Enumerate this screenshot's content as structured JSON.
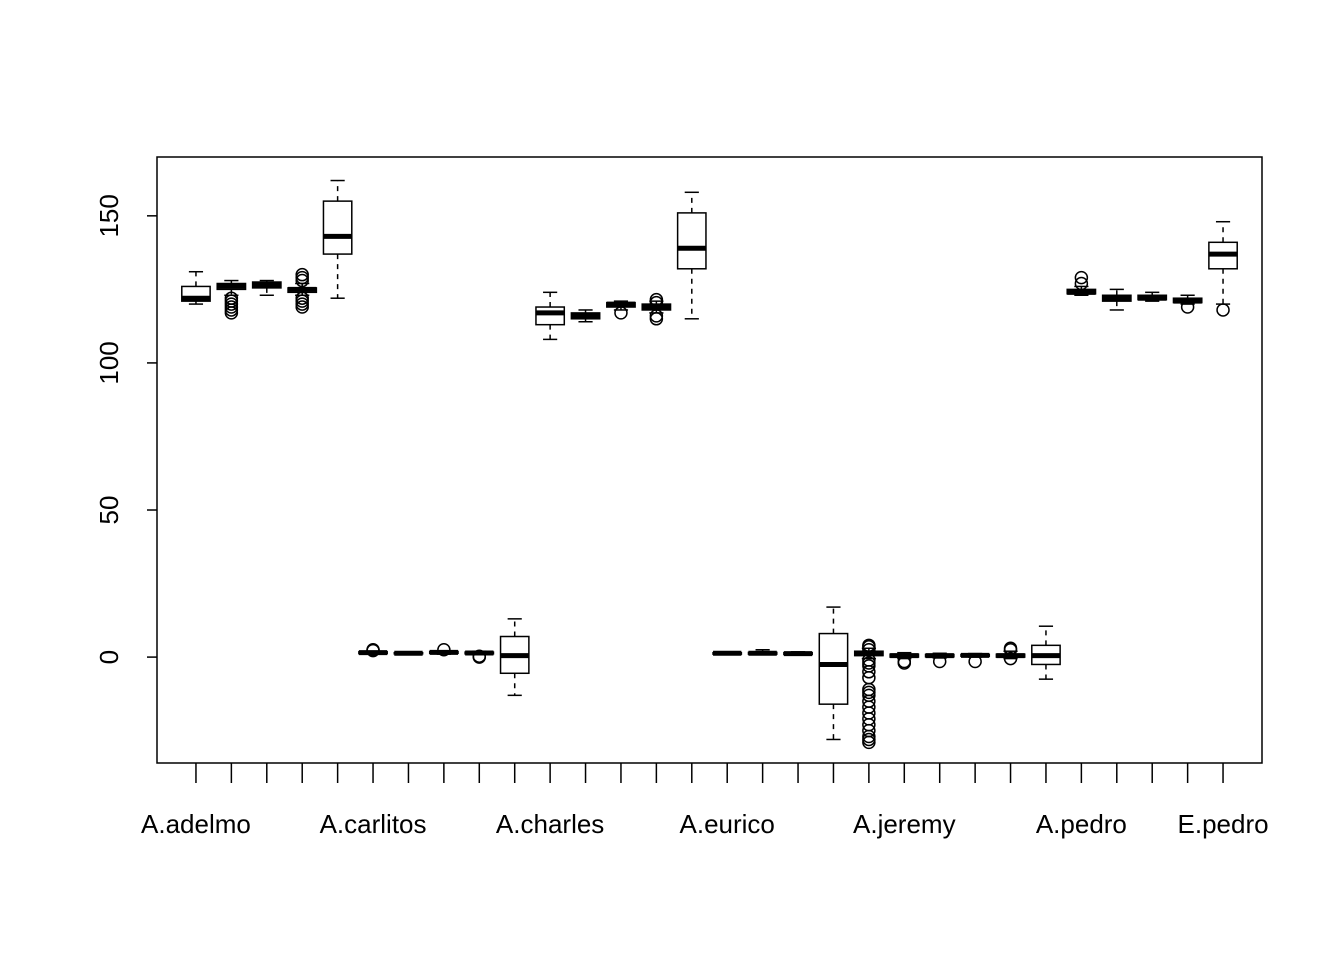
{
  "chart_data": {
    "type": "boxplot",
    "title": "",
    "xlabel": "",
    "ylabel": "",
    "ylim": [
      -36,
      170
    ],
    "y_ticks": [
      0,
      50,
      100,
      150
    ],
    "y_tick_labels": [
      "0",
      "50",
      "100",
      "150"
    ],
    "x_tick_labels": [
      "A.adelmo",
      "A.carlitos",
      "A.charles",
      "A.eurico",
      "A.jeremy",
      "A.pedro",
      "E.pedro"
    ],
    "x_tick_label_positions": [
      1,
      6,
      11,
      16,
      21,
      26,
      30
    ],
    "colors": {
      "box_fill": "#ffffff",
      "stroke": "#000000"
    },
    "boxes": [
      {
        "pos": 1,
        "wlo": 120,
        "q1": 121,
        "med": 122,
        "q3": 126,
        "whi": 131,
        "out": []
      },
      {
        "pos": 2,
        "wlo": 123,
        "q1": 125,
        "med": 126,
        "q3": 127,
        "whi": 128,
        "out": [
          117,
          118,
          119,
          120,
          121,
          122
        ]
      },
      {
        "pos": 3,
        "wlo": 123,
        "q1": 125.5,
        "med": 126.5,
        "q3": 127.5,
        "whi": 128,
        "out": []
      },
      {
        "pos": 4,
        "wlo": 123,
        "q1": 124,
        "med": 125,
        "q3": 125.5,
        "whi": 127,
        "out": [
          119,
          120,
          121,
          122,
          128,
          129,
          130
        ]
      },
      {
        "pos": 5,
        "wlo": 122,
        "q1": 137,
        "med": 143,
        "q3": 155,
        "whi": 162,
        "out": []
      },
      {
        "pos": 6,
        "wlo": 1,
        "q1": 1.2,
        "med": 1.5,
        "q3": 1.8,
        "whi": 2,
        "out": [
          2.2,
          2.5
        ]
      },
      {
        "pos": 7,
        "wlo": 0.9,
        "q1": 1.1,
        "med": 1.3,
        "q3": 1.5,
        "whi": 1.8,
        "out": []
      },
      {
        "pos": 8,
        "wlo": 1,
        "q1": 1.3,
        "med": 1.6,
        "q3": 1.9,
        "whi": 2.1,
        "out": [
          2.5
        ]
      },
      {
        "pos": 9,
        "wlo": 0.8,
        "q1": 1.1,
        "med": 1.4,
        "q3": 1.7,
        "whi": 2,
        "out": [
          0,
          0.3
        ]
      },
      {
        "pos": 10,
        "wlo": -13,
        "q1": -5.5,
        "med": 0.5,
        "q3": 7,
        "whi": 13,
        "out": []
      },
      {
        "pos": 11,
        "wlo": 108,
        "q1": 113,
        "med": 117,
        "q3": 119,
        "whi": 124,
        "out": []
      },
      {
        "pos": 12,
        "wlo": 114,
        "q1": 115,
        "med": 116,
        "q3": 117,
        "whi": 118,
        "out": []
      },
      {
        "pos": 13,
        "wlo": 118,
        "q1": 119,
        "med": 120,
        "q3": 120.5,
        "whi": 121,
        "out": [
          117
        ]
      },
      {
        "pos": 14,
        "wlo": 117,
        "q1": 118,
        "med": 119,
        "q3": 120,
        "whi": 121,
        "out": [
          115,
          116,
          120.5,
          121.5
        ]
      },
      {
        "pos": 15,
        "wlo": 115,
        "q1": 132,
        "med": 139,
        "q3": 151,
        "whi": 158,
        "out": []
      },
      {
        "pos": 16,
        "wlo": 0.8,
        "q1": 1.0,
        "med": 1.3,
        "q3": 1.5,
        "whi": 1.8,
        "out": []
      },
      {
        "pos": 17,
        "wlo": 0.8,
        "q1": 1.0,
        "med": 1.3,
        "q3": 1.6,
        "whi": 2.5,
        "out": []
      },
      {
        "pos": 18,
        "wlo": 0.7,
        "q1": 0.9,
        "med": 1.2,
        "q3": 1.5,
        "whi": 1.8,
        "out": []
      },
      {
        "pos": 19,
        "wlo": -28,
        "q1": -16,
        "med": -2.5,
        "q3": 8,
        "whi": 17,
        "out": []
      },
      {
        "pos": 20,
        "wlo": -0.5,
        "q1": 0.5,
        "med": 1.2,
        "q3": 2,
        "whi": 3,
        "out": [
          4,
          3.5,
          2.5,
          -1,
          -2,
          -3,
          -5,
          -7,
          -11,
          -12,
          -13,
          -15,
          -17,
          -19,
          -21,
          -23,
          -25,
          -27,
          -28,
          -29
        ]
      },
      {
        "pos": 21,
        "wlo": -0.5,
        "q1": 0,
        "med": 0.5,
        "q3": 1,
        "whi": 1.5,
        "out": [
          -1.5,
          -2
        ]
      },
      {
        "pos": 22,
        "wlo": -0.3,
        "q1": 0.1,
        "med": 0.5,
        "q3": 0.9,
        "whi": 1.3,
        "out": [
          -1.5
        ]
      },
      {
        "pos": 23,
        "wlo": 0,
        "q1": 0.3,
        "med": 0.6,
        "q3": 0.9,
        "whi": 1.2,
        "out": [
          -1.5
        ]
      },
      {
        "pos": 24,
        "wlo": -0.5,
        "q1": 0,
        "med": 0.5,
        "q3": 1,
        "whi": 2,
        "out": [
          -0.5,
          2.5,
          3
        ]
      },
      {
        "pos": 25,
        "wlo": -7.5,
        "q1": -2.5,
        "med": 0.5,
        "q3": 4,
        "whi": 10.5,
        "out": []
      },
      {
        "pos": 26,
        "wlo": 123,
        "q1": 123.5,
        "med": 124,
        "q3": 125,
        "whi": 126,
        "out": [
          127,
          129
        ]
      },
      {
        "pos": 27,
        "wlo": 118,
        "q1": 121,
        "med": 122,
        "q3": 123,
        "whi": 125,
        "out": []
      },
      {
        "pos": 28,
        "wlo": 121,
        "q1": 121.5,
        "med": 122,
        "q3": 123,
        "whi": 124,
        "out": []
      },
      {
        "pos": 29,
        "wlo": 120,
        "q1": 120.5,
        "med": 121,
        "q3": 122,
        "whi": 123,
        "out": [
          119
        ]
      },
      {
        "pos": 30,
        "wlo": 120,
        "q1": 132,
        "med": 137,
        "q3": 141,
        "whi": 148,
        "out": [
          118
        ]
      }
    ]
  }
}
